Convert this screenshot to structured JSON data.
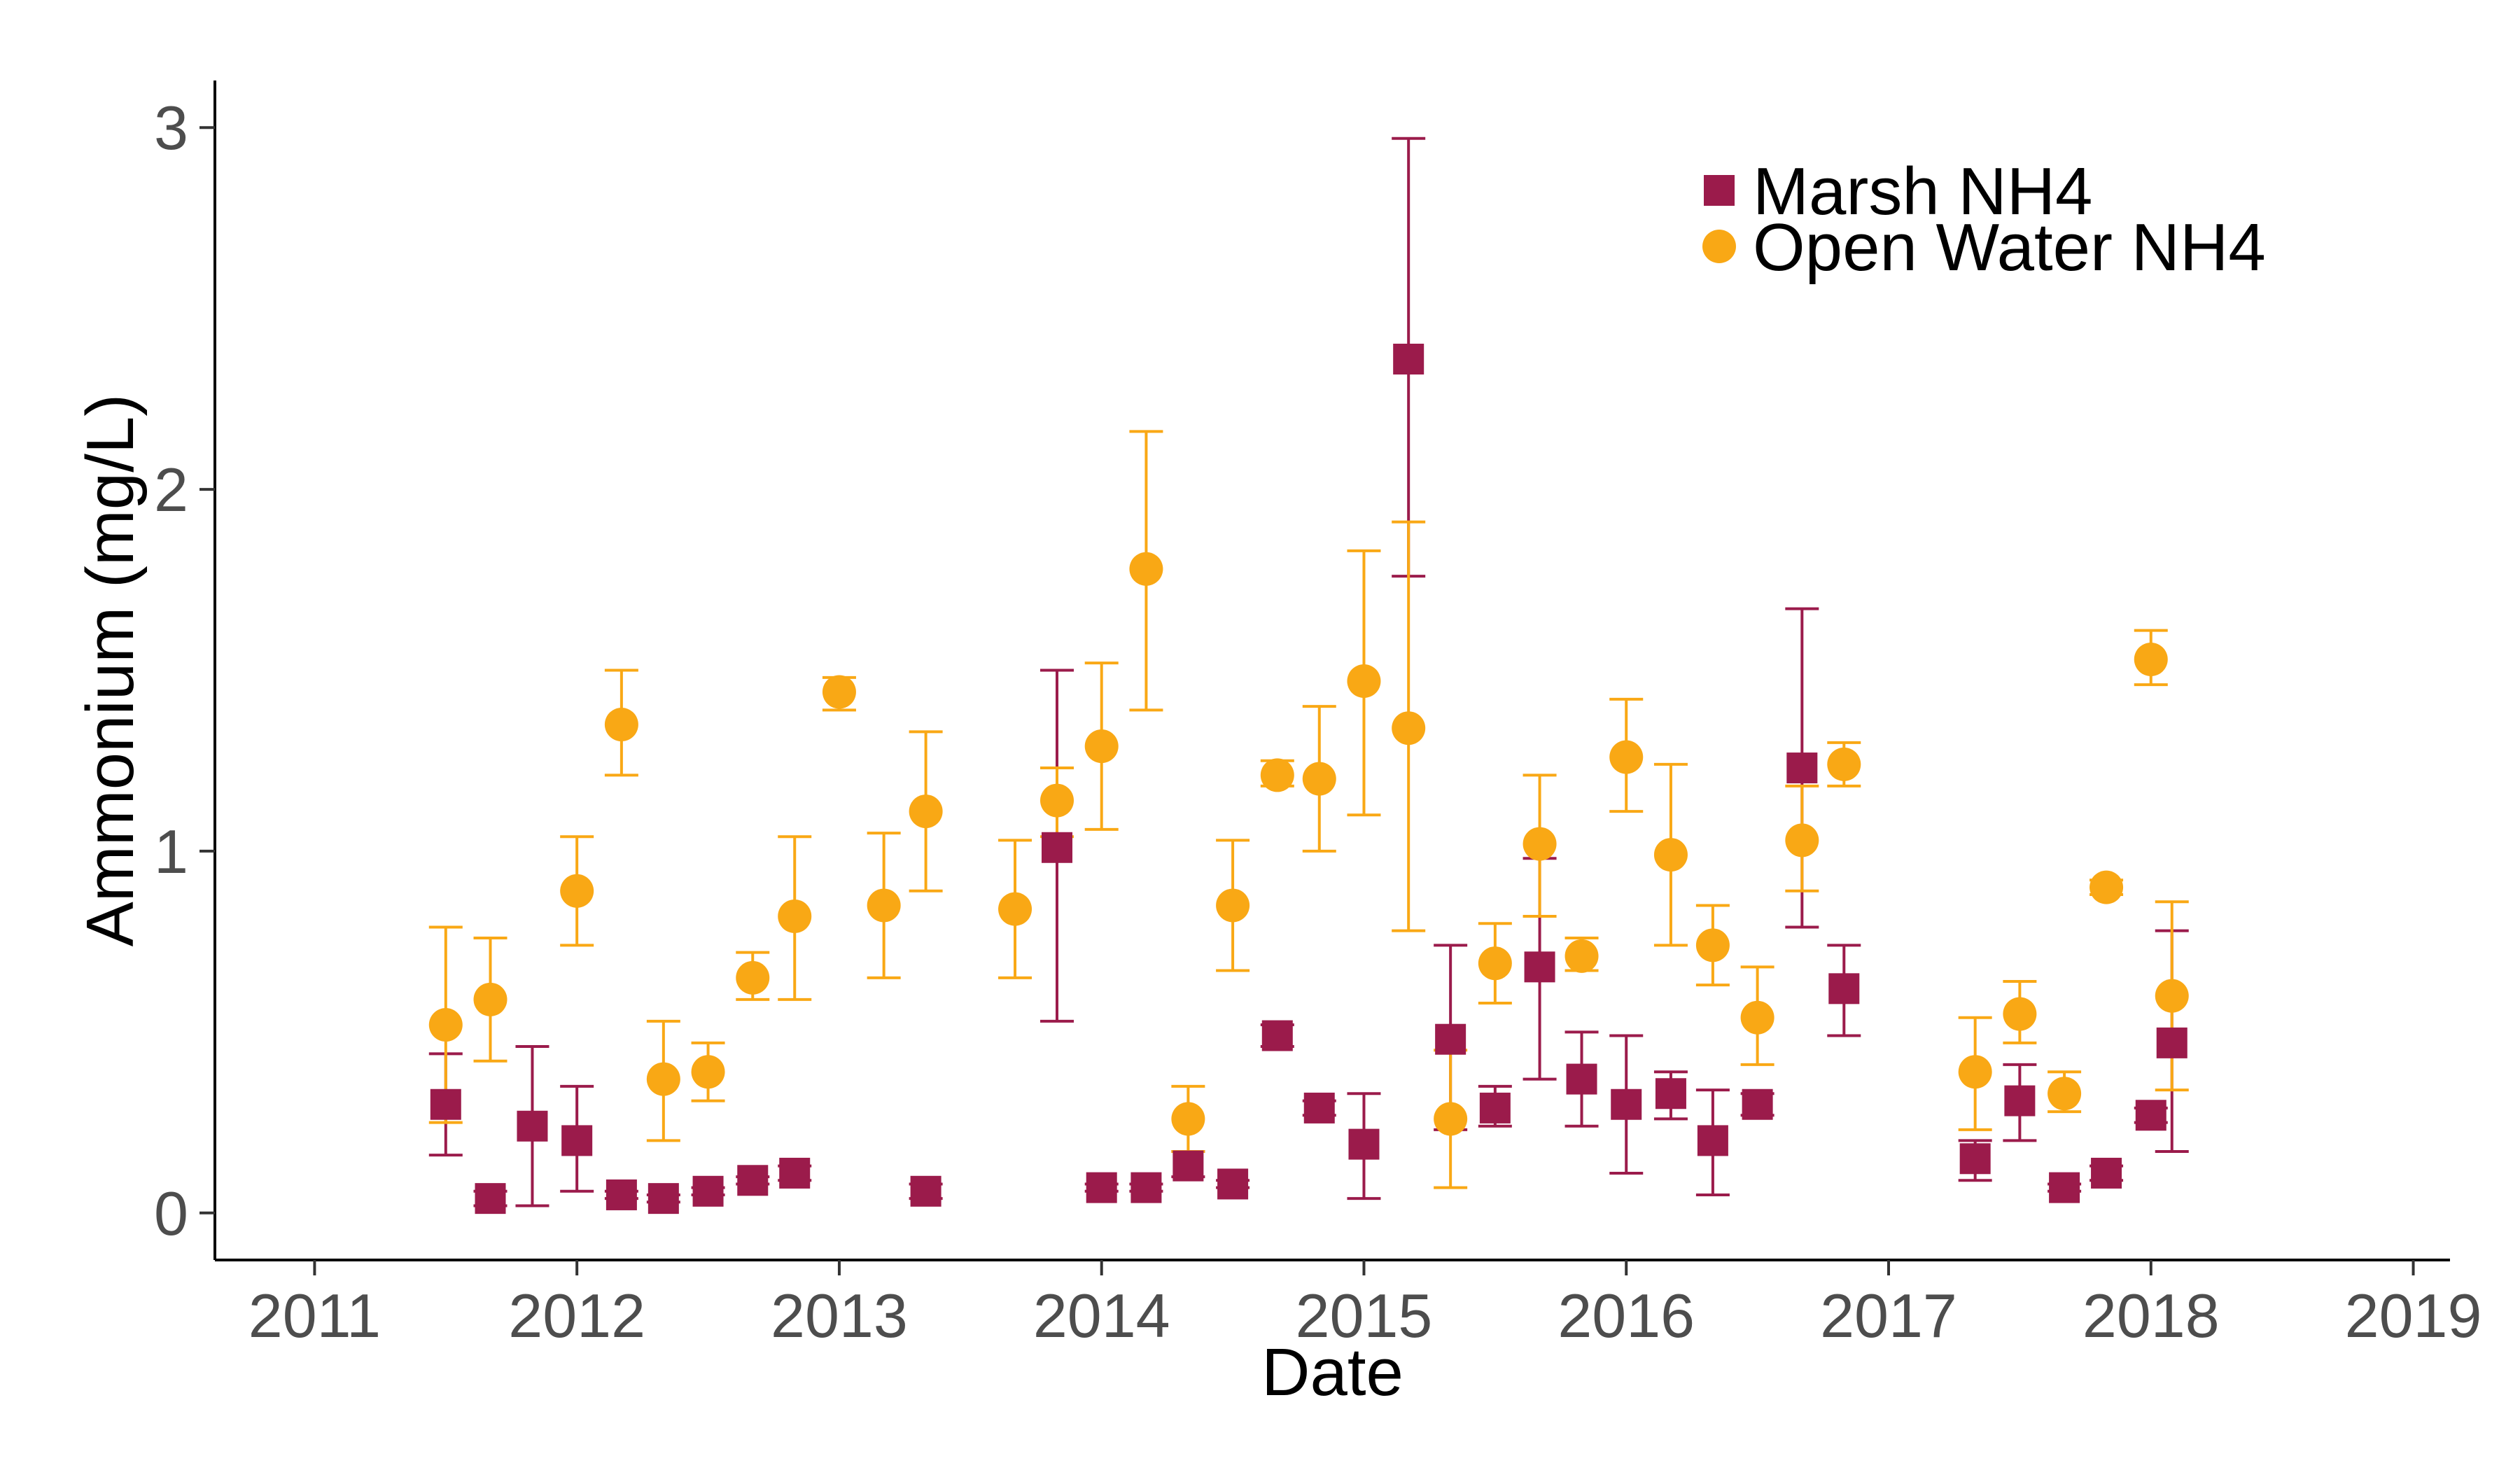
{
  "chart_data": {
    "type": "scatter",
    "xlabel": "Date",
    "ylabel": "Ammonium (mg/L)",
    "xlim": [
      2010.62,
      2019.14
    ],
    "ylim": [
      -0.13,
      3.13
    ],
    "x_ticks": [
      2011,
      2012,
      2013,
      2014,
      2015,
      2016,
      2017,
      2018,
      2019
    ],
    "x_tick_labels": [
      "2011",
      "2012",
      "2013",
      "2014",
      "2015",
      "2016",
      "2017",
      "2018",
      "2019"
    ],
    "y_ticks": [
      0,
      1,
      2,
      3
    ],
    "y_tick_labels": [
      "0",
      "1",
      "2",
      "3"
    ],
    "grid": false,
    "legend_position": "top-right",
    "series": [
      {
        "name": "Marsh NH4",
        "color": "#9b1b4b",
        "marker": "square",
        "points": [
          {
            "x": 2011.5,
            "y": 0.3,
            "lo": 0.16,
            "hi": 0.44
          },
          {
            "x": 2011.67,
            "y": 0.04,
            "lo": 0.02,
            "hi": 0.06
          },
          {
            "x": 2011.83,
            "y": 0.24,
            "lo": 0.02,
            "hi": 0.46
          },
          {
            "x": 2012.0,
            "y": 0.2,
            "lo": 0.06,
            "hi": 0.35
          },
          {
            "x": 2012.17,
            "y": 0.05,
            "lo": 0.04,
            "hi": 0.06
          },
          {
            "x": 2012.33,
            "y": 0.04,
            "lo": 0.03,
            "hi": 0.05
          },
          {
            "x": 2012.5,
            "y": 0.06,
            "lo": 0.05,
            "hi": 0.07
          },
          {
            "x": 2012.67,
            "y": 0.09,
            "lo": 0.08,
            "hi": 0.1
          },
          {
            "x": 2012.83,
            "y": 0.11,
            "lo": 0.09,
            "hi": 0.13
          },
          {
            "x": 2013.33,
            "y": 0.06,
            "lo": 0.04,
            "hi": 0.08
          },
          {
            "x": 2013.83,
            "y": 1.01,
            "lo": 0.53,
            "hi": 1.5
          },
          {
            "x": 2014.0,
            "y": 0.07,
            "lo": 0.06,
            "hi": 0.08
          },
          {
            "x": 2014.17,
            "y": 0.07,
            "lo": 0.06,
            "hi": 0.08
          },
          {
            "x": 2014.33,
            "y": 0.13,
            "lo": 0.1,
            "hi": 0.17
          },
          {
            "x": 2014.5,
            "y": 0.08,
            "lo": 0.07,
            "hi": 0.09
          },
          {
            "x": 2014.67,
            "y": 0.49,
            "lo": 0.46,
            "hi": 0.52
          },
          {
            "x": 2014.83,
            "y": 0.29,
            "lo": 0.27,
            "hi": 0.31
          },
          {
            "x": 2015.0,
            "y": 0.19,
            "lo": 0.04,
            "hi": 0.33
          },
          {
            "x": 2015.17,
            "y": 2.36,
            "lo": 1.76,
            "hi": 2.97
          },
          {
            "x": 2015.33,
            "y": 0.48,
            "lo": 0.23,
            "hi": 0.74
          },
          {
            "x": 2015.5,
            "y": 0.29,
            "lo": 0.24,
            "hi": 0.35
          },
          {
            "x": 2015.67,
            "y": 0.68,
            "lo": 0.37,
            "hi": 0.98
          },
          {
            "x": 2015.83,
            "y": 0.37,
            "lo": 0.24,
            "hi": 0.5
          },
          {
            "x": 2016.0,
            "y": 0.3,
            "lo": 0.11,
            "hi": 0.49
          },
          {
            "x": 2016.17,
            "y": 0.33,
            "lo": 0.26,
            "hi": 0.39
          },
          {
            "x": 2016.33,
            "y": 0.2,
            "lo": 0.05,
            "hi": 0.34
          },
          {
            "x": 2016.5,
            "y": 0.3,
            "lo": 0.27,
            "hi": 0.33
          },
          {
            "x": 2016.67,
            "y": 1.23,
            "lo": 0.79,
            "hi": 1.67
          },
          {
            "x": 2016.83,
            "y": 0.62,
            "lo": 0.49,
            "hi": 0.74
          },
          {
            "x": 2017.33,
            "y": 0.15,
            "lo": 0.09,
            "hi": 0.2
          },
          {
            "x": 2017.5,
            "y": 0.31,
            "lo": 0.2,
            "hi": 0.41
          },
          {
            "x": 2017.67,
            "y": 0.07,
            "lo": 0.06,
            "hi": 0.08
          },
          {
            "x": 2017.83,
            "y": 0.11,
            "lo": 0.09,
            "hi": 0.13
          },
          {
            "x": 2018.0,
            "y": 0.27,
            "lo": 0.25,
            "hi": 0.29
          },
          {
            "x": 2018.08,
            "y": 0.47,
            "lo": 0.17,
            "hi": 0.78
          }
        ]
      },
      {
        "name": "Open Water NH4",
        "color": "#f9a815",
        "marker": "circle",
        "points": [
          {
            "x": 2011.5,
            "y": 0.52,
            "lo": 0.25,
            "hi": 0.79
          },
          {
            "x": 2011.67,
            "y": 0.59,
            "lo": 0.42,
            "hi": 0.76
          },
          {
            "x": 2012.0,
            "y": 0.89,
            "lo": 0.74,
            "hi": 1.04
          },
          {
            "x": 2012.17,
            "y": 1.35,
            "lo": 1.21,
            "hi": 1.5
          },
          {
            "x": 2012.33,
            "y": 0.37,
            "lo": 0.2,
            "hi": 0.53
          },
          {
            "x": 2012.5,
            "y": 0.39,
            "lo": 0.31,
            "hi": 0.47
          },
          {
            "x": 2012.67,
            "y": 0.65,
            "lo": 0.59,
            "hi": 0.72
          },
          {
            "x": 2012.83,
            "y": 0.82,
            "lo": 0.59,
            "hi": 1.04
          },
          {
            "x": 2013.0,
            "y": 1.44,
            "lo": 1.39,
            "hi": 1.48
          },
          {
            "x": 2013.17,
            "y": 0.85,
            "lo": 0.65,
            "hi": 1.05
          },
          {
            "x": 2013.33,
            "y": 1.11,
            "lo": 0.89,
            "hi": 1.33
          },
          {
            "x": 2013.67,
            "y": 0.84,
            "lo": 0.65,
            "hi": 1.03
          },
          {
            "x": 2013.83,
            "y": 1.14,
            "lo": 1.04,
            "hi": 1.23
          },
          {
            "x": 2014.0,
            "y": 1.29,
            "lo": 1.06,
            "hi": 1.52
          },
          {
            "x": 2014.17,
            "y": 1.78,
            "lo": 1.39,
            "hi": 2.16
          },
          {
            "x": 2014.33,
            "y": 0.26,
            "lo": 0.17,
            "hi": 0.35
          },
          {
            "x": 2014.5,
            "y": 0.85,
            "lo": 0.67,
            "hi": 1.03
          },
          {
            "x": 2014.67,
            "y": 1.21,
            "lo": 1.18,
            "hi": 1.25
          },
          {
            "x": 2014.83,
            "y": 1.2,
            "lo": 1.0,
            "hi": 1.4
          },
          {
            "x": 2015.0,
            "y": 1.47,
            "lo": 1.1,
            "hi": 1.83
          },
          {
            "x": 2015.17,
            "y": 1.34,
            "lo": 0.78,
            "hi": 1.91
          },
          {
            "x": 2015.33,
            "y": 0.26,
            "lo": 0.07,
            "hi": 0.45
          },
          {
            "x": 2015.5,
            "y": 0.69,
            "lo": 0.58,
            "hi": 0.8
          },
          {
            "x": 2015.67,
            "y": 1.02,
            "lo": 0.82,
            "hi": 1.21
          },
          {
            "x": 2015.83,
            "y": 0.71,
            "lo": 0.67,
            "hi": 0.76
          },
          {
            "x": 2016.0,
            "y": 1.26,
            "lo": 1.11,
            "hi": 1.42
          },
          {
            "x": 2016.17,
            "y": 0.99,
            "lo": 0.74,
            "hi": 1.24
          },
          {
            "x": 2016.33,
            "y": 0.74,
            "lo": 0.63,
            "hi": 0.85
          },
          {
            "x": 2016.5,
            "y": 0.54,
            "lo": 0.41,
            "hi": 0.68
          },
          {
            "x": 2016.67,
            "y": 1.03,
            "lo": 0.89,
            "hi": 1.18
          },
          {
            "x": 2016.83,
            "y": 1.24,
            "lo": 1.18,
            "hi": 1.3
          },
          {
            "x": 2017.33,
            "y": 0.39,
            "lo": 0.23,
            "hi": 0.54
          },
          {
            "x": 2017.5,
            "y": 0.55,
            "lo": 0.47,
            "hi": 0.64
          },
          {
            "x": 2017.67,
            "y": 0.33,
            "lo": 0.28,
            "hi": 0.39
          },
          {
            "x": 2017.83,
            "y": 0.9,
            "lo": 0.88,
            "hi": 0.92
          },
          {
            "x": 2018.0,
            "y": 1.53,
            "lo": 1.46,
            "hi": 1.61
          },
          {
            "x": 2018.08,
            "y": 0.6,
            "lo": 0.34,
            "hi": 0.86
          }
        ]
      }
    ]
  }
}
